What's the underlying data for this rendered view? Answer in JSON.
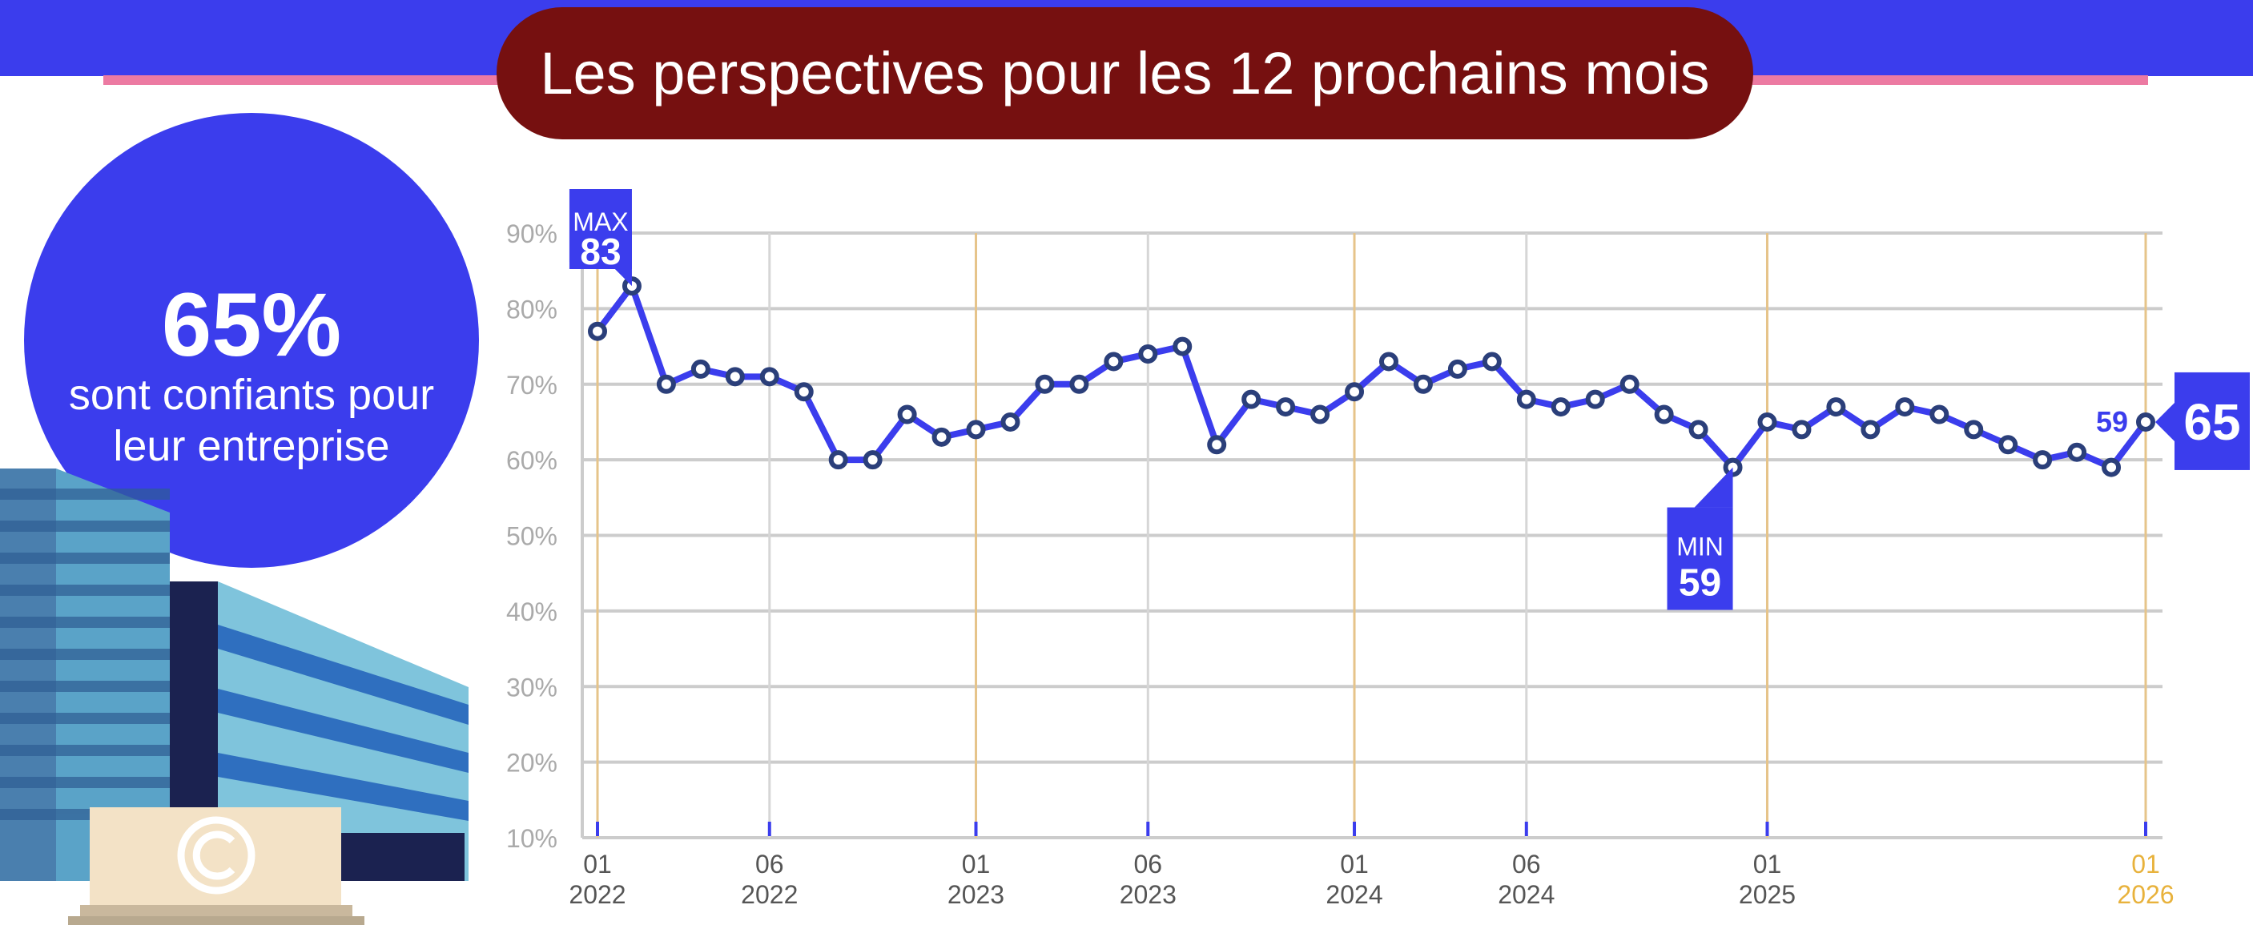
{
  "header": {
    "title": "Les perspectives pour les 12 prochains mois"
  },
  "highlight": {
    "value": "65%",
    "text_line1": "sont confiants pour",
    "text_line2": "leur entreprise"
  },
  "colors": {
    "line": "#3b3ded",
    "marker": "#2b3f7a",
    "title_bg": "#761010",
    "accent": "#ec7aa2",
    "year_line": "#e6c48a",
    "grid": "#cccccc"
  },
  "chart_data": {
    "type": "line",
    "ylim": [
      10,
      90
    ],
    "yticks": [
      "10%",
      "20%",
      "30%",
      "40%",
      "50%",
      "60%",
      "70%",
      "80%",
      "90%"
    ],
    "grid": true,
    "values": [
      77,
      83,
      70,
      72,
      71,
      71,
      69,
      60,
      60,
      66,
      63,
      64,
      65,
      70,
      70,
      73,
      74,
      75,
      62,
      68,
      67,
      66,
      69,
      73,
      70,
      72,
      73,
      68,
      67,
      68,
      70,
      66,
      64,
      59,
      65,
      64,
      67,
      64,
      67,
      66,
      64,
      62,
      60,
      61,
      59,
      65
    ],
    "xticks": [
      {
        "index": 0,
        "month": "01",
        "year": "2022",
        "year_start": true
      },
      {
        "index": 5,
        "month": "06",
        "year": "2022",
        "year_start": false
      },
      {
        "index": 11,
        "month": "01",
        "year": "2023",
        "year_start": true
      },
      {
        "index": 16,
        "month": "06",
        "year": "2023",
        "year_start": false
      },
      {
        "index": 22,
        "month": "01",
        "year": "2024",
        "year_start": true
      },
      {
        "index": 27,
        "month": "06",
        "year": "2024",
        "year_start": false
      },
      {
        "index": 34,
        "month": "01",
        "year": "2025",
        "year_start": true
      },
      {
        "index": 45,
        "month": "01",
        "year": "2026",
        "year_start": true
      }
    ],
    "max_label": {
      "tag": "MAX",
      "value": "83"
    },
    "min_label": {
      "tag": "MIN",
      "value": "59"
    },
    "previous_label": "59",
    "last_label": "65"
  }
}
